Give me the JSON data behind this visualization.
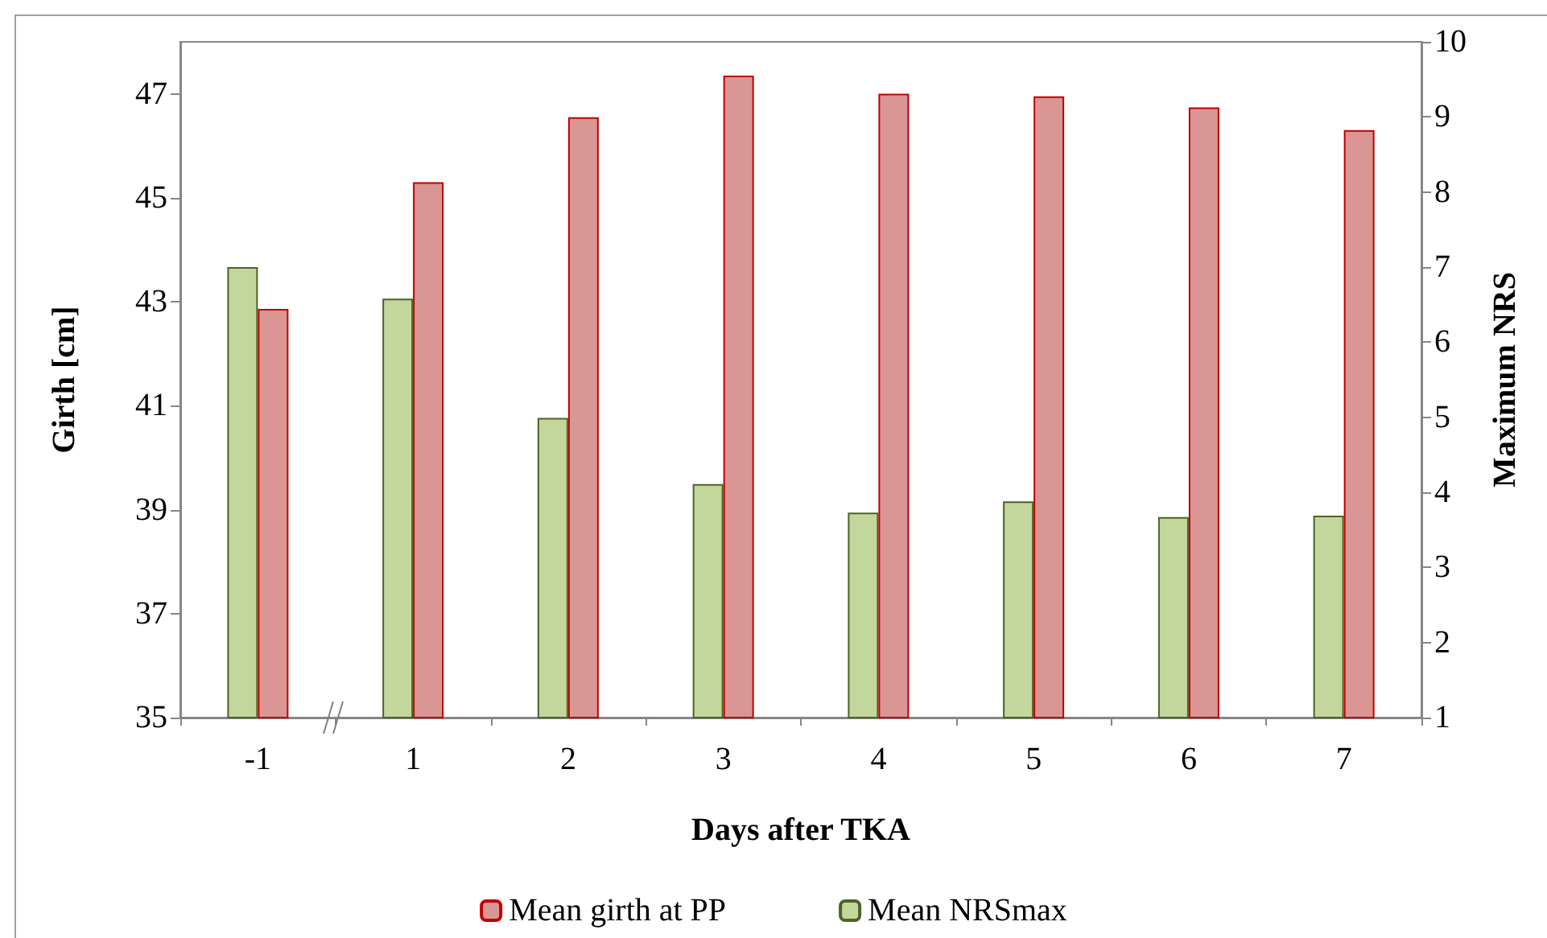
{
  "chart_data": {
    "type": "bar",
    "xlabel": "Days after TKA",
    "ylabel": "Girth [cm]",
    "y2label": "Maximum NRS",
    "categories": [
      "-1",
      "1",
      "2",
      "3",
      "4",
      "5",
      "6",
      "7"
    ],
    "series": [
      {
        "name": "Mean NRSmax",
        "color": "#c3d69b",
        "axis": "y2",
        "values": [
          7.0,
          6.58,
          4.99,
          4.11,
          3.73,
          3.88,
          3.67,
          3.69
        ]
      },
      {
        "name": "Mean girth at PP",
        "color": "#d99694",
        "values": [
          42.86,
          45.3,
          46.55,
          47.35,
          47.0,
          46.95,
          46.74,
          46.3
        ]
      }
    ],
    "ylim": [
      35,
      48
    ],
    "yticks": [
      35,
      37,
      39,
      41,
      43,
      45,
      47
    ],
    "y2lim": [
      1,
      10
    ],
    "y2ticks": [
      1,
      2,
      3,
      4,
      5,
      6,
      7,
      8,
      9,
      10
    ],
    "legend": "bottom",
    "grid": false
  }
}
